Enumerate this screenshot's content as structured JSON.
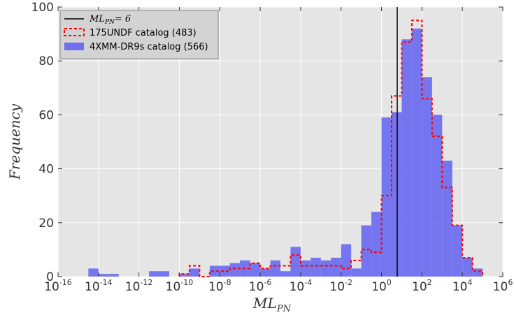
{
  "chart_data": {
    "type": "bar",
    "title": "",
    "xlabel": "ML",
    "xlabel_sub": "PN",
    "ylabel": "Frequency",
    "x_scale": "log",
    "xlim": [
      1e-16,
      1000000.0
    ],
    "ylim": [
      0,
      100
    ],
    "grid": true,
    "legend_position": "top-left",
    "bin_width_dex": 0.5,
    "x_ticks": [
      {
        "base": "10",
        "exp": "-16"
      },
      {
        "base": "10",
        "exp": "-14"
      },
      {
        "base": "10",
        "exp": "-12"
      },
      {
        "base": "10",
        "exp": "-10"
      },
      {
        "base": "10",
        "exp": "-8"
      },
      {
        "base": "10",
        "exp": "-6"
      },
      {
        "base": "10",
        "exp": "-4"
      },
      {
        "base": "10",
        "exp": "-2"
      },
      {
        "base": "10",
        "exp": "0"
      },
      {
        "base": "10",
        "exp": "2"
      },
      {
        "base": "10",
        "exp": "4"
      },
      {
        "base": "10",
        "exp": "6"
      }
    ],
    "y_ticks": [
      "0",
      "20",
      "40",
      "60",
      "80",
      "100"
    ],
    "threshold_line": {
      "x": 6,
      "label_main": "ML",
      "label_sub": "PN",
      "label_rest": "= 6",
      "color": "#000000"
    },
    "series": [
      {
        "name": "4XMM-DR9s catalog (566)",
        "style": "filled",
        "color": "#6f6ff0",
        "bins": [
          {
            "x0": 3.16e-15,
            "x1": 1e-14,
            "value": 3
          },
          {
            "x0": 1e-14,
            "x1": 3.16e-14,
            "value": 1
          },
          {
            "x0": 3.16e-14,
            "x1": 1e-13,
            "value": 1
          },
          {
            "x0": 3.16e-12,
            "x1": 1e-11,
            "value": 2
          },
          {
            "x0": 1e-11,
            "x1": 3.16e-11,
            "value": 2
          },
          {
            "x0": 1e-10,
            "x1": 3.16e-10,
            "value": 1
          },
          {
            "x0": 3.16e-10,
            "x1": 1e-09,
            "value": 3
          },
          {
            "x0": 3.16e-09,
            "x1": 1e-08,
            "value": 4
          },
          {
            "x0": 1e-08,
            "x1": 3.16e-08,
            "value": 4
          },
          {
            "x0": 3.16e-08,
            "x1": 1e-07,
            "value": 5
          },
          {
            "x0": 1e-07,
            "x1": 3.16e-07,
            "value": 6
          },
          {
            "x0": 3.16e-07,
            "x1": 1e-06,
            "value": 5
          },
          {
            "x0": 1e-06,
            "x1": 3.16e-06,
            "value": 3
          },
          {
            "x0": 3.16e-06,
            "x1": 1e-05,
            "value": 6
          },
          {
            "x0": 1e-05,
            "x1": 3.16e-05,
            "value": 2
          },
          {
            "x0": 3.16e-05,
            "x1": 0.0001,
            "value": 11
          },
          {
            "x0": 0.0001,
            "x1": 0.000316,
            "value": 6
          },
          {
            "x0": 0.000316,
            "x1": 0.001,
            "value": 7
          },
          {
            "x0": 0.001,
            "x1": 0.00316,
            "value": 6
          },
          {
            "x0": 0.00316,
            "x1": 0.01,
            "value": 7
          },
          {
            "x0": 0.01,
            "x1": 0.0316,
            "value": 12
          },
          {
            "x0": 0.0316,
            "x1": 0.1,
            "value": 3
          },
          {
            "x0": 0.1,
            "x1": 0.316,
            "value": 19
          },
          {
            "x0": 0.316,
            "x1": 1,
            "value": 24
          },
          {
            "x0": 1,
            "x1": 3.16,
            "value": 59
          },
          {
            "x0": 3.16,
            "x1": 10,
            "value": 61
          },
          {
            "x0": 10,
            "x1": 31.6,
            "value": 88
          },
          {
            "x0": 31.6,
            "x1": 100,
            "value": 92
          },
          {
            "x0": 100,
            "x1": 316,
            "value": 74
          },
          {
            "x0": 316,
            "x1": 1000,
            "value": 60
          },
          {
            "x0": 1000,
            "x1": 3162,
            "value": 43
          },
          {
            "x0": 3162,
            "x1": 10000,
            "value": 19
          },
          {
            "x0": 10000,
            "x1": 31623,
            "value": 7
          },
          {
            "x0": 31623,
            "x1": 100000,
            "value": 3
          }
        ]
      },
      {
        "name": "175UNDF catalog (483)",
        "style": "step-dashed",
        "color": "#ff0000",
        "bins": [
          {
            "x0": 1e-10,
            "x1": 3.16e-10,
            "value": 1
          },
          {
            "x0": 3.16e-10,
            "x1": 1e-09,
            "value": 4
          },
          {
            "x0": 1e-09,
            "x1": 3.16e-09,
            "value": 0
          },
          {
            "x0": 3.16e-09,
            "x1": 1e-08,
            "value": 2
          },
          {
            "x0": 1e-08,
            "x1": 3.16e-08,
            "value": 2
          },
          {
            "x0": 3.16e-08,
            "x1": 1e-07,
            "value": 3
          },
          {
            "x0": 1e-07,
            "x1": 3.16e-07,
            "value": 3
          },
          {
            "x0": 3.16e-07,
            "x1": 1e-06,
            "value": 5
          },
          {
            "x0": 1e-06,
            "x1": 3.16e-06,
            "value": 3
          },
          {
            "x0": 3.16e-06,
            "x1": 1e-05,
            "value": 4
          },
          {
            "x0": 1e-05,
            "x1": 3.16e-05,
            "value": 4
          },
          {
            "x0": 3.16e-05,
            "x1": 0.0001,
            "value": 8
          },
          {
            "x0": 0.0001,
            "x1": 0.000316,
            "value": 4
          },
          {
            "x0": 0.000316,
            "x1": 0.001,
            "value": 4
          },
          {
            "x0": 0.001,
            "x1": 0.00316,
            "value": 4
          },
          {
            "x0": 0.00316,
            "x1": 0.01,
            "value": 4
          },
          {
            "x0": 0.01,
            "x1": 0.0316,
            "value": 3
          },
          {
            "x0": 0.0316,
            "x1": 0.1,
            "value": 6
          },
          {
            "x0": 0.1,
            "x1": 0.316,
            "value": 10
          },
          {
            "x0": 0.316,
            "x1": 1,
            "value": 9
          },
          {
            "x0": 1,
            "x1": 3.16,
            "value": 30
          },
          {
            "x0": 3.16,
            "x1": 10,
            "value": 67
          },
          {
            "x0": 10,
            "x1": 31.6,
            "value": 87
          },
          {
            "x0": 31.6,
            "x1": 100,
            "value": 95
          },
          {
            "x0": 100,
            "x1": 316,
            "value": 66
          },
          {
            "x0": 316,
            "x1": 1000,
            "value": 52
          },
          {
            "x0": 1000,
            "x1": 3162,
            "value": 33
          },
          {
            "x0": 3162,
            "x1": 10000,
            "value": 19
          },
          {
            "x0": 10000,
            "x1": 31623,
            "value": 7
          },
          {
            "x0": 31623,
            "x1": 100000,
            "value": 2
          }
        ]
      }
    ]
  }
}
